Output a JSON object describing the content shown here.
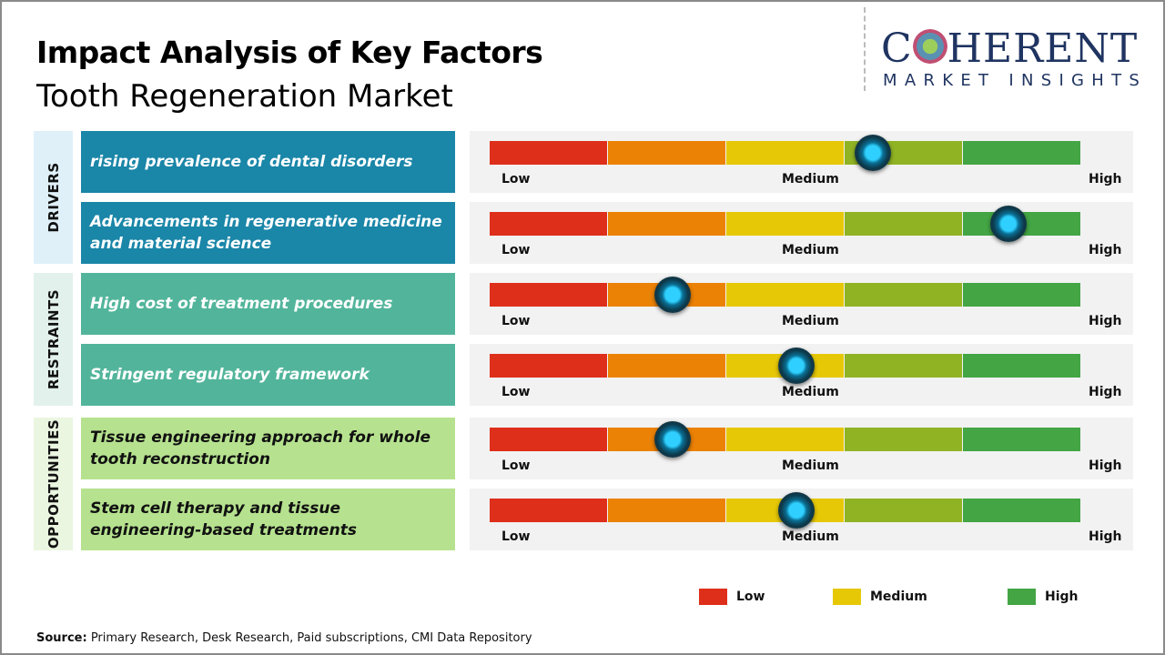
{
  "header": {
    "title": "Impact Analysis of Key Factors",
    "subtitle": "Tooth Regeneration Market"
  },
  "logo": {
    "line1_a": "C",
    "line1_b": "HERENT",
    "line2": "MARKET INSIGHTS"
  },
  "colors": {
    "segments": [
      "#de2f1b",
      "#ec8205",
      "#e6c807",
      "#90b324",
      "#43a544"
    ],
    "drivers_box": "#1a86a8",
    "drivers_side": "#dff0f8",
    "restraints_box": "#52b59b",
    "restraints_side": "#e2f1ec",
    "opportunities_box": "#b6e28f",
    "opportunities_side": "#eaf6e0"
  },
  "chart_data": {
    "type": "gauge",
    "scale_labels": [
      "Low",
      "Medium",
      "High"
    ],
    "categories": [
      {
        "name": "DRIVERS",
        "key": "drivers",
        "text_color": "#ffffff",
        "factors": [
          {
            "label": "rising prevalence of dental disorders",
            "impact": 0.65
          },
          {
            "label": "Advancements in regenerative medicine and material science",
            "impact": 0.88
          }
        ]
      },
      {
        "name": "RESTRAINTS",
        "key": "restraints",
        "text_color": "#ffffff",
        "factors": [
          {
            "label": "High cost of treatment procedures",
            "impact": 0.31
          },
          {
            "label": "Stringent regulatory framework",
            "impact": 0.52
          }
        ]
      },
      {
        "name": "OPPORTUNITIES",
        "key": "opportunities",
        "text_color": "#111111",
        "factors": [
          {
            "label": "Tissue engineering approach for whole tooth reconstruction",
            "impact": 0.31
          },
          {
            "label": "Stem cell therapy and tissue engineering-based treatments",
            "impact": 0.52
          }
        ]
      }
    ],
    "legend": [
      {
        "label": "Low",
        "color": "#de2f1b"
      },
      {
        "label": "Medium",
        "color": "#e6c807"
      },
      {
        "label": "High",
        "color": "#43a544"
      }
    ]
  },
  "source": {
    "label": "Source:",
    "text": " Primary Research, Desk Research, Paid subscriptions, CMI Data Repository"
  }
}
